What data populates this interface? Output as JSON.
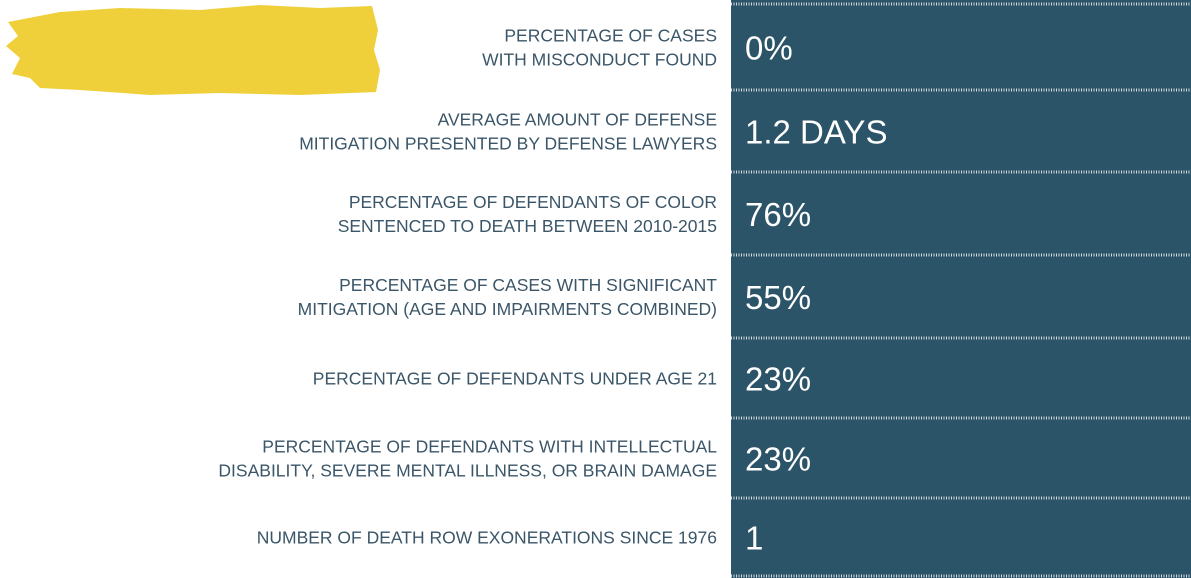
{
  "rows": [
    {
      "label": [
        "PERCENTAGE OF CASES",
        "WITH MISCONDUCT FOUND"
      ],
      "value": "0%"
    },
    {
      "label": [
        "AVERAGE AMOUNT OF DEFENSE",
        "MITIGATION PRESENTED BY DEFENSE LAWYERS"
      ],
      "value": "1.2 DAYS"
    },
    {
      "label": [
        "PERCENTAGE OF DEFENDANTS OF COLOR",
        "SENTENCED TO DEATH BETWEEN 2010-2015"
      ],
      "value": "76%"
    },
    {
      "label": [
        "PERCENTAGE OF CASES WITH SIGNIFICANT",
        "MITIGATION (AGE AND IMPAIRMENTS COMBINED)"
      ],
      "value": "55%"
    },
    {
      "label": [
        "PERCENTAGE OF DEFENDANTS UNDER AGE 21"
      ],
      "value": "23%"
    },
    {
      "label": [
        "PERCENTAGE OF DEFENDANTS WITH INTELLECTUAL",
        "DISABILITY, SEVERE MENTAL ILLNESS, OR BRAIN DAMAGE"
      ],
      "value": "23%"
    },
    {
      "label": [
        "NUMBER OF DEATH ROW EXONERATIONS SINCE 1976"
      ],
      "value": "1"
    }
  ]
}
